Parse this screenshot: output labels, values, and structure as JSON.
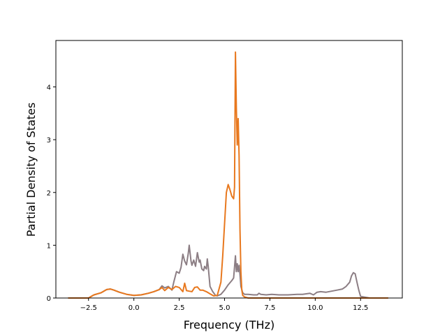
{
  "chart_data": {
    "type": "line",
    "title": "",
    "xlabel": "Frequency (THz)",
    "ylabel": "Partial Density of States",
    "xlim": [
      -4.3,
      14.8
    ],
    "ylim": [
      0,
      4.88
    ],
    "grid": false,
    "xticks": [
      -2.5,
      0.0,
      2.5,
      5.0,
      7.5,
      10.0,
      12.5
    ],
    "xtick_labels": [
      "−2.5",
      "0.0",
      "2.5",
      "5.0",
      "7.5",
      "10.0",
      "12.5"
    ],
    "yticks": [
      0,
      1,
      2,
      3,
      4
    ],
    "ytick_labels": [
      "0",
      "1",
      "2",
      "3",
      "4"
    ],
    "series": [
      {
        "color": "#8c7e84",
        "x": [
          -3.6,
          -2.5,
          -2.2,
          -1.8,
          -1.5,
          -1.3,
          -1.1,
          -0.8,
          -0.4,
          0.0,
          0.4,
          0.8,
          1.1,
          1.4,
          1.55,
          1.7,
          1.9,
          2.1,
          2.2,
          2.35,
          2.5,
          2.6,
          2.7,
          2.8,
          2.9,
          3.0,
          3.05,
          3.15,
          3.2,
          3.3,
          3.4,
          3.5,
          3.6,
          3.65,
          3.75,
          3.85,
          3.9,
          4.0,
          4.05,
          4.1,
          4.2,
          4.35,
          4.5,
          4.6,
          4.8,
          5.0,
          5.2,
          5.4,
          5.5,
          5.6,
          5.65,
          5.7,
          5.75,
          5.8,
          5.85,
          5.9,
          6.0,
          6.1,
          6.3,
          6.6,
          6.8,
          6.9,
          7.0,
          7.3,
          7.6,
          8.0,
          8.5,
          9.0,
          9.3,
          9.5,
          9.7,
          9.9,
          10.1,
          10.3,
          10.6,
          10.9,
          11.2,
          11.5,
          11.7,
          11.9,
          12.0,
          12.1,
          12.2,
          12.3,
          12.4,
          12.5,
          13.0,
          14.0
        ],
        "y": [
          0,
          0,
          0.06,
          0.1,
          0.16,
          0.17,
          0.15,
          0.11,
          0.07,
          0.05,
          0.06,
          0.09,
          0.12,
          0.16,
          0.23,
          0.19,
          0.22,
          0.15,
          0.3,
          0.5,
          0.47,
          0.58,
          0.83,
          0.7,
          0.63,
          0.85,
          1.0,
          0.7,
          0.62,
          0.72,
          0.6,
          0.86,
          0.68,
          0.72,
          0.55,
          0.52,
          0.6,
          0.55,
          0.74,
          0.6,
          0.22,
          0.12,
          0.05,
          0.04,
          0.07,
          0.15,
          0.25,
          0.33,
          0.38,
          0.8,
          0.5,
          0.65,
          0.5,
          0.62,
          0.45,
          0.22,
          0.1,
          0.07,
          0.07,
          0.06,
          0.06,
          0.09,
          0.07,
          0.06,
          0.07,
          0.06,
          0.06,
          0.07,
          0.07,
          0.08,
          0.09,
          0.06,
          0.11,
          0.12,
          0.11,
          0.13,
          0.15,
          0.17,
          0.22,
          0.3,
          0.42,
          0.48,
          0.46,
          0.3,
          0.15,
          0.03,
          0,
          0
        ]
      },
      {
        "color": "#e8781e",
        "x": [
          -3.6,
          -2.5,
          -2.2,
          -1.8,
          -1.5,
          -1.3,
          -1.1,
          -0.8,
          -0.4,
          0.0,
          0.4,
          0.8,
          1.1,
          1.4,
          1.55,
          1.7,
          1.9,
          2.1,
          2.3,
          2.5,
          2.7,
          2.8,
          2.9,
          3.05,
          3.2,
          3.35,
          3.5,
          3.65,
          3.8,
          4.0,
          4.2,
          4.4,
          4.6,
          4.8,
          4.9,
          5.0,
          5.1,
          5.2,
          5.3,
          5.4,
          5.5,
          5.55,
          5.6,
          5.65,
          5.7,
          5.75,
          5.8,
          5.85,
          5.9,
          5.95,
          6.0,
          6.1,
          6.3,
          6.8,
          14.0
        ],
        "y": [
          0,
          0,
          0.06,
          0.1,
          0.16,
          0.17,
          0.15,
          0.11,
          0.07,
          0.05,
          0.06,
          0.09,
          0.12,
          0.16,
          0.2,
          0.14,
          0.2,
          0.16,
          0.22,
          0.2,
          0.12,
          0.28,
          0.14,
          0.13,
          0.12,
          0.2,
          0.21,
          0.15,
          0.15,
          0.12,
          0.08,
          0.04,
          0.05,
          0.3,
          0.8,
          1.4,
          2.0,
          2.15,
          2.05,
          1.93,
          1.88,
          2.1,
          4.66,
          3.6,
          2.9,
          3.4,
          2.7,
          1.3,
          0.5,
          0.15,
          0.05,
          0.02,
          0,
          0,
          0
        ]
      }
    ]
  }
}
